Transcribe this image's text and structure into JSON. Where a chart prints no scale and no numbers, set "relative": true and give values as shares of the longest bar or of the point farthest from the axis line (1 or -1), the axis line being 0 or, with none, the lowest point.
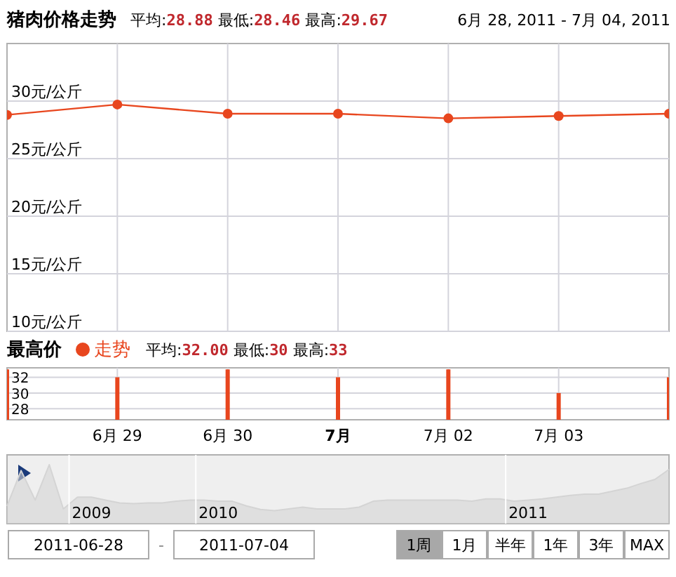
{
  "chart_data": [
    {
      "type": "line",
      "title": "猪肉价格走势",
      "subtitle": "平均:28.88 最低:28.46 最高:29.67",
      "annotations": [
        "6月 28, 2011 - 7月 04, 2011"
      ],
      "x": [
        "--06-28",
        "--06-29",
        "--06-30",
        "--07-01",
        "--07-02",
        "--07-03",
        "--07-04"
      ],
      "series": [
        {
          "color": "#e8461e",
          "values": [
            28.8,
            29.7,
            28.9,
            28.9,
            28.5,
            28.7,
            28.9
          ]
        }
      ],
      "xlim": [
        "--06-28",
        "--07-04"
      ],
      "xticks": [
        {
          "value": "--06-29",
          "label": null
        },
        {
          "value": "--06-30",
          "label": null
        },
        {
          "value": "--07-01",
          "label": null
        },
        {
          "value": "--07-02",
          "label": null
        },
        {
          "value": "--07-03",
          "label": null
        }
      ],
      "ylim": [
        10,
        35
      ],
      "yticks": [
        {
          "value": 10,
          "label": "10元/公斤"
        },
        {
          "value": 15,
          "label": "15元/公斤"
        },
        {
          "value": 20,
          "label": "20元/公斤"
        },
        {
          "value": 25,
          "label": "25元/公斤"
        },
        {
          "value": 30,
          "label": "30元/公斤"
        }
      ],
      "grid": true,
      "marker": "circle",
      "tick_labels": "y"
    },
    {
      "type": "bar",
      "title": "最高价",
      "subtitle": "平均:32.00 最低:30 最高:33",
      "x": [
        "--06-28",
        "--06-29",
        "--06-30",
        "--07-01",
        "--07-02",
        "--07-03",
        "--07-04"
      ],
      "series": [
        {
          "name": "走势",
          "color": "#e8461e",
          "values": [
            33,
            32,
            33,
            32,
            33,
            30,
            32
          ]
        }
      ],
      "xlim": [
        "--06-28",
        "--07-04"
      ],
      "xticks": [
        {
          "value": "--06-29",
          "label": "6月 29"
        },
        {
          "value": "--06-30",
          "label": "6月 30"
        },
        {
          "value": "--07-01",
          "label": "7月"
        },
        {
          "value": "--07-02",
          "label": "7月 02"
        },
        {
          "value": "--07-03",
          "label": "7月 03"
        }
      ],
      "ylim": [
        26.6,
        33.2
      ],
      "yticks": [
        28,
        30,
        32
      ],
      "grid": true,
      "legend": "top left"
    },
    {
      "type": "area",
      "relative": true,
      "categories": [
        null,
        null,
        null,
        null,
        null,
        null,
        "2009",
        null,
        null,
        null,
        null,
        null,
        null,
        null,
        null,
        "2010",
        null,
        null,
        null,
        null,
        null,
        null,
        null,
        null,
        null,
        null,
        null,
        null,
        null,
        null,
        null,
        null,
        null,
        null,
        null,
        null,
        null,
        "2011",
        null,
        null,
        null,
        null,
        null,
        null,
        null,
        null,
        null,
        null
      ],
      "series": [
        {
          "color": "#d4d4d4",
          "values": [
            0.3,
            0.9,
            0.4,
            1.0,
            0.25,
            0.45,
            0.45,
            0.4,
            0.35,
            0.34,
            0.35,
            0.35,
            0.38,
            0.4,
            0.4,
            0.38,
            0.38,
            0.3,
            0.24,
            0.22,
            0.25,
            0.28,
            0.25,
            0.25,
            0.25,
            0.28,
            0.38,
            0.4,
            0.4,
            0.4,
            0.4,
            0.4,
            0.4,
            0.38,
            0.42,
            0.42,
            0.38,
            0.4,
            0.42,
            0.45,
            0.48,
            0.5,
            0.5,
            0.55,
            0.6,
            0.68,
            0.75,
            0.92
          ]
        }
      ],
      "grid": "x",
      "annotations": [
        "2011-06-28",
        "-",
        "2011-07-04",
        "1周",
        "1月",
        "半年",
        "1年",
        "3年",
        "MAX"
      ]
    }
  ]
}
